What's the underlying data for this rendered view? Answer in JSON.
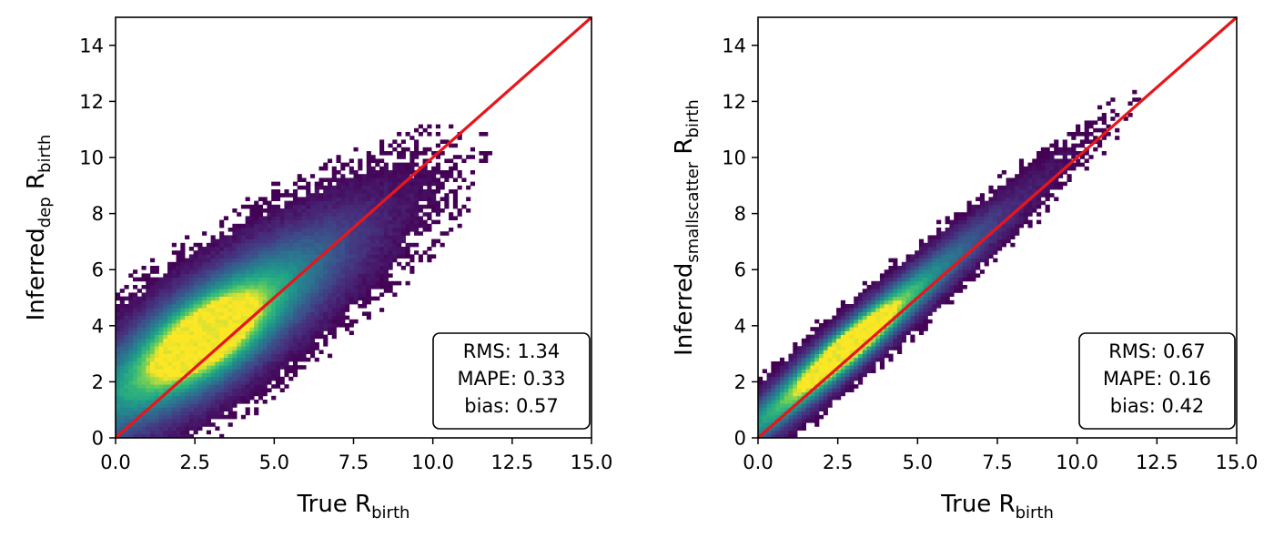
{
  "chart_data": [
    {
      "type": "heatmap",
      "subtype": "2d-histogram",
      "colormap": "viridis",
      "xlabel": {
        "main": "True R",
        "sub": "birth"
      },
      "ylabel": {
        "main": "Inferred",
        "sub1": "dep",
        "mid": " R",
        "sub2": "birth"
      },
      "xlim": [
        0,
        15
      ],
      "ylim": [
        0,
        15
      ],
      "xticks": [
        "0.0",
        "2.5",
        "5.0",
        "7.5",
        "10.0",
        "12.5",
        "15.0"
      ],
      "yticks": [
        "0",
        "2",
        "4",
        "6",
        "8",
        "10",
        "12",
        "14"
      ],
      "reference_line": {
        "color": "#e8161b",
        "from": [
          0,
          0
        ],
        "to": [
          15,
          15
        ]
      },
      "stats": [
        "RMS: 1.34",
        "MAPE: 0.33",
        "bias: 0.57"
      ],
      "density_model": {
        "peak": [
          2.9,
          3.5
        ],
        "slope": 0.72,
        "intercept": 1.6,
        "spread": 1.35,
        "support": [
          0,
          12.5
        ]
      }
    },
    {
      "type": "heatmap",
      "subtype": "2d-histogram",
      "colormap": "viridis",
      "xlabel": {
        "main": "True R",
        "sub": "birth"
      },
      "ylabel": {
        "main": "Inferred",
        "sub1": "smallscatter",
        "mid": " R",
        "sub2": "birth"
      },
      "xlim": [
        0,
        15
      ],
      "ylim": [
        0,
        15
      ],
      "xticks": [
        "0.0",
        "2.5",
        "5.0",
        "7.5",
        "10.0",
        "12.5",
        "15.0"
      ],
      "yticks": [
        "0",
        "2",
        "4",
        "6",
        "8",
        "10",
        "12",
        "14"
      ],
      "reference_line": {
        "color": "#e8161b",
        "from": [
          0,
          0
        ],
        "to": [
          15,
          15
        ]
      },
      "stats": [
        "RMS: 0.67",
        "MAPE: 0.16",
        "bias: 0.42"
      ],
      "density_model": {
        "peak": [
          2.8,
          3.4
        ],
        "slope": 0.97,
        "intercept": 0.5,
        "spread": 0.62,
        "support": [
          0,
          13
        ]
      }
    }
  ]
}
